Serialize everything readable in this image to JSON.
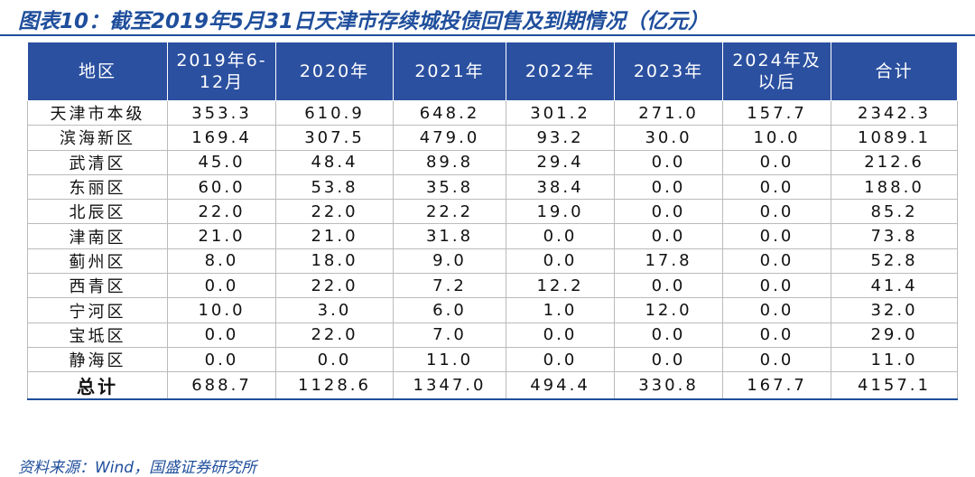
{
  "title": "图表10：截至2019年5月31日天津市存续城投债回售及到期情况（亿元）",
  "table": {
    "header": [
      "地区",
      "2019年6-12月",
      "2020年",
      "2021年",
      "2022年",
      "2023年",
      "2024年及以后",
      "合计"
    ],
    "rows": [
      [
        "天津市本级",
        "353.3",
        "610.9",
        "648.2",
        "301.2",
        "271.0",
        "157.7",
        "2342.3"
      ],
      [
        "滨海新区",
        "169.4",
        "307.5",
        "479.0",
        "93.2",
        "30.0",
        "10.0",
        "1089.1"
      ],
      [
        "武清区",
        "45.0",
        "48.4",
        "89.8",
        "29.4",
        "0.0",
        "0.0",
        "212.6"
      ],
      [
        "东丽区",
        "60.0",
        "53.8",
        "35.8",
        "38.4",
        "0.0",
        "0.0",
        "188.0"
      ],
      [
        "北辰区",
        "22.0",
        "22.0",
        "22.2",
        "19.0",
        "0.0",
        "0.0",
        "85.2"
      ],
      [
        "津南区",
        "21.0",
        "21.0",
        "31.8",
        "0.0",
        "0.0",
        "0.0",
        "73.8"
      ],
      [
        "蓟州区",
        "8.0",
        "18.0",
        "9.0",
        "0.0",
        "17.8",
        "0.0",
        "52.8"
      ],
      [
        "西青区",
        "0.0",
        "22.0",
        "7.2",
        "12.2",
        "0.0",
        "0.0",
        "41.4"
      ],
      [
        "宁河区",
        "10.0",
        "3.0",
        "6.0",
        "1.0",
        "12.0",
        "0.0",
        "32.0"
      ],
      [
        "宝坻区",
        "0.0",
        "22.0",
        "7.0",
        "0.0",
        "0.0",
        "0.0",
        "29.0"
      ],
      [
        "静海区",
        "0.0",
        "0.0",
        "11.0",
        "0.0",
        "0.0",
        "0.0",
        "11.0"
      ],
      [
        "总计",
        "688.7",
        "1128.6",
        "1347.0",
        "494.4",
        "330.8",
        "167.7",
        "4157.1"
      ]
    ]
  },
  "source": "资料来源：Wind，国盛证券研究所"
}
